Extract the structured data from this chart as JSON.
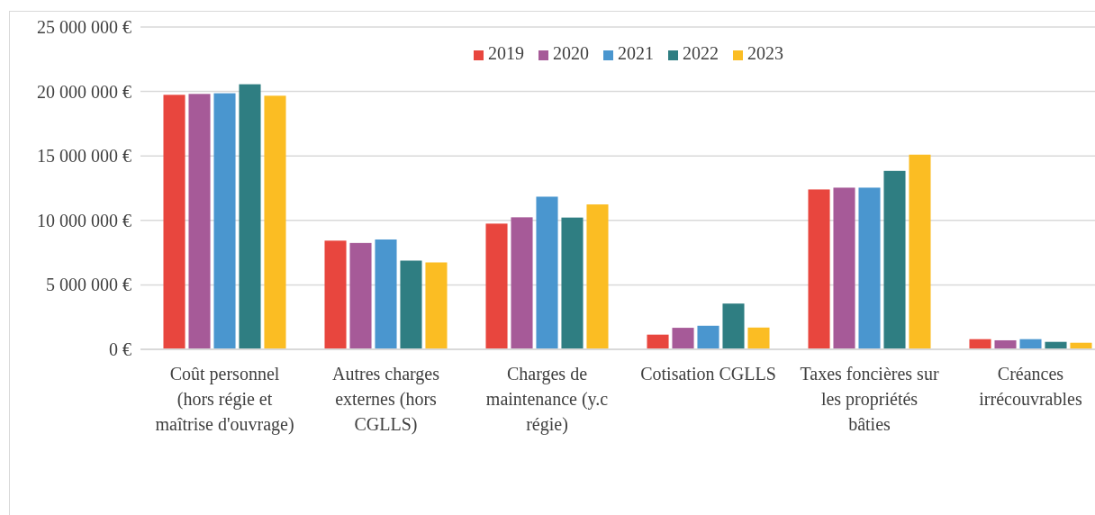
{
  "chart_data": {
    "type": "bar",
    "categories": [
      "Coût personnel (hors régie et maîtrise d'ouvrage)",
      "Autres charges externes (hors CGLLS)",
      "Charges de maintenance (y.c régie)",
      "Cotisation CGLLS",
      "Taxes foncières sur les propriétés bâties",
      "Créances irrécouvrables"
    ],
    "series": [
      {
        "name": "2019",
        "color": "#e8463e",
        "values": [
          19740000,
          8430000,
          9750000,
          1140000,
          12400000,
          790000
        ]
      },
      {
        "name": "2020",
        "color": "#a65a98",
        "values": [
          19810000,
          8250000,
          10240000,
          1670000,
          12540000,
          700000
        ]
      },
      {
        "name": "2021",
        "color": "#4a96cf",
        "values": [
          19860000,
          8520000,
          11840000,
          1830000,
          12540000,
          790000
        ]
      },
      {
        "name": "2022",
        "color": "#2f7e82",
        "values": [
          20560000,
          6880000,
          10220000,
          3550000,
          13840000,
          580000
        ]
      },
      {
        "name": "2023",
        "color": "#fbbd23",
        "values": [
          19670000,
          6740000,
          11240000,
          1690000,
          15100000,
          510000
        ]
      }
    ],
    "ylim": [
      0,
      25000000
    ],
    "yticks": [
      {
        "value": 0,
        "label": "0 €"
      },
      {
        "value": 5000000,
        "label": "5 000 000 €"
      },
      {
        "value": 10000000,
        "label": "10 000 000 €"
      },
      {
        "value": 15000000,
        "label": "15 000 000 €"
      },
      {
        "value": 20000000,
        "label": "20 000 000 €"
      },
      {
        "value": 25000000,
        "label": "25 000 000 €"
      }
    ],
    "grid": "y",
    "legend": "top"
  }
}
